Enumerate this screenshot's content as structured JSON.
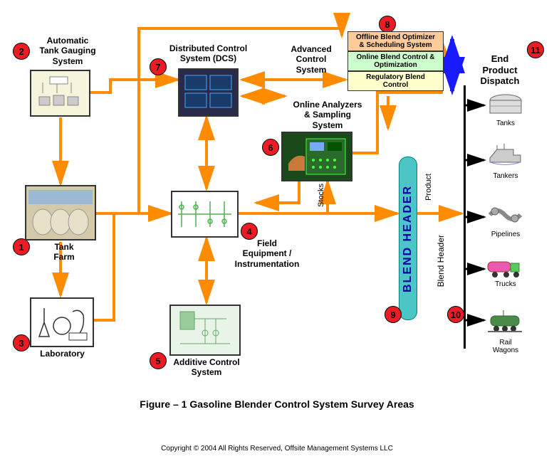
{
  "figure_title": "Figure – 1 Gasoline Blender Control System Survey Areas",
  "copyright": "Copyright © 2004 All Rights Reserved, Offsite Management Systems LLC",
  "colors": {
    "arrow": "#ff8c00",
    "badge_fill": "#ed1c24",
    "acs_offline_bg": "#ffcc99",
    "acs_online_bg": "#ccffcc",
    "acs_reg_bg": "#ffffcc",
    "blend_header_bg": "#4cc5c7",
    "blue_arrow": "#1a1aff"
  },
  "nodes": {
    "n1": {
      "badge": "1",
      "label": "Tank\nFarm"
    },
    "n2": {
      "badge": "2",
      "label": "Automatic\nTank Gauging\nSystem"
    },
    "n3": {
      "badge": "3",
      "label": "Laboratory"
    },
    "n4": {
      "badge": "4",
      "label": "Field\nEquipment /\nInstrumentation"
    },
    "n5": {
      "badge": "5",
      "label": "Additive Control\nSystem"
    },
    "n6": {
      "badge": "6",
      "label": "Online Analyzers\n& Sampling\nSystem"
    },
    "n7": {
      "badge": "7",
      "label": "Distributed Control\nSystem (DCS)"
    },
    "n8": {
      "badge": "8",
      "label": "Advanced\nControl\nSystem"
    },
    "n9": {
      "badge": "9",
      "label": "BLEND HEADER"
    },
    "n10": {
      "badge": "10"
    },
    "n11": {
      "badge": "11",
      "label": "End\nProduct\nDispatch"
    }
  },
  "acs_layers": {
    "offline": "Offline Blend Optimizer\n& Scheduling System",
    "online": "Online Blend Control &\nOptimization",
    "regulatory": "Regulatory Blend\nControl"
  },
  "side_labels": {
    "stocks": "Stocks",
    "product": "Product",
    "blend_header_text": "Blend Header"
  },
  "dispatch": [
    {
      "name": "tanks",
      "label": "Tanks"
    },
    {
      "name": "tankers",
      "label": "Tankers"
    },
    {
      "name": "pipelines",
      "label": "Pipelines"
    },
    {
      "name": "trucks",
      "label": "Trucks"
    },
    {
      "name": "rail",
      "label": "Rail\nWagons"
    }
  ]
}
